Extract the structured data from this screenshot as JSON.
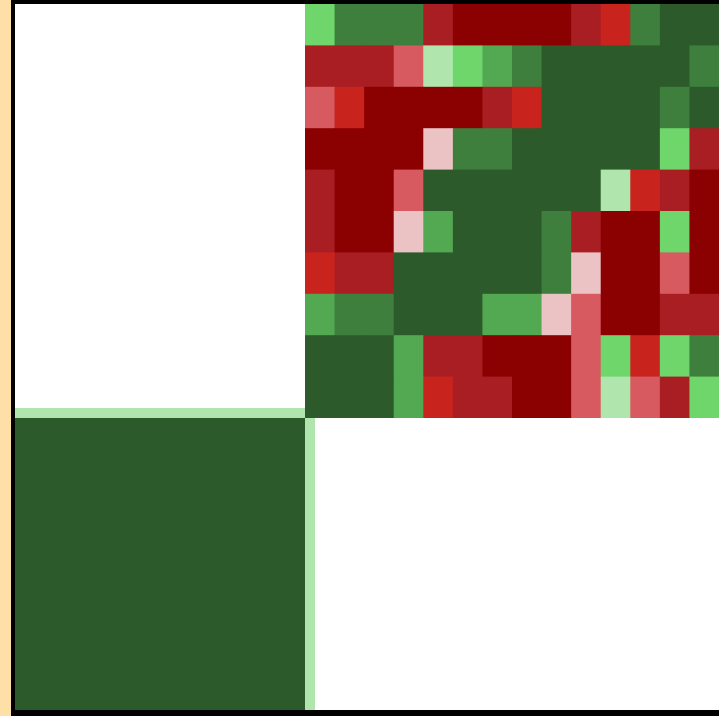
{
  "colors": {
    "background": "#ffdfa8",
    "frame": "#000000",
    "empty": "#ffffff",
    "scale": [
      "#8b0000",
      "#a91e22",
      "#c9231e",
      "#d65a5f",
      "#ebc3c5",
      "#b0e6ae",
      "#6ed66a",
      "#53a852",
      "#3f7f3d",
      "#2c5a2a"
    ]
  },
  "chart_data": {
    "type": "heatmap",
    "title": "",
    "xlabel": "",
    "ylabel": "",
    "grid": false,
    "legend": "none",
    "grid_size": [
      2,
      2
    ],
    "quadrants": [
      {
        "row": 0,
        "col": 0,
        "state": "empty",
        "value": null
      },
      {
        "row": 0,
        "col": 1,
        "state": "subdivided",
        "value": null
      },
      {
        "row": 1,
        "col": 0,
        "state": "filled",
        "value": 9
      },
      {
        "row": 1,
        "col": 1,
        "state": "empty",
        "value": null
      }
    ],
    "separators": [
      {
        "orientation": "horizontal",
        "value": 5
      },
      {
        "orientation": "vertical",
        "value": 5
      }
    ],
    "detail_grid": {
      "rows": 10,
      "cols": 14,
      "values": [
        [
          6,
          8,
          8,
          8,
          1,
          0,
          0,
          0,
          0,
          1,
          2,
          8,
          9,
          9
        ],
        [
          1,
          1,
          1,
          3,
          5,
          6,
          7,
          8,
          9,
          9,
          9,
          9,
          9,
          8
        ],
        [
          3,
          2,
          0,
          0,
          0,
          0,
          1,
          2,
          9,
          9,
          9,
          9,
          8,
          9
        ],
        [
          0,
          0,
          0,
          0,
          4,
          8,
          8,
          9,
          9,
          9,
          9,
          9,
          6,
          1
        ],
        [
          1,
          0,
          0,
          3,
          9,
          9,
          9,
          9,
          9,
          9,
          5,
          2,
          1,
          0
        ],
        [
          1,
          0,
          0,
          4,
          7,
          9,
          9,
          9,
          8,
          1,
          0,
          0,
          6,
          0
        ],
        [
          2,
          1,
          1,
          9,
          9,
          9,
          9,
          9,
          8,
          4,
          0,
          0,
          3,
          0
        ],
        [
          7,
          8,
          8,
          9,
          9,
          9,
          7,
          7,
          4,
          3,
          0,
          0,
          1,
          1
        ],
        [
          9,
          9,
          9,
          7,
          1,
          1,
          0,
          0,
          0,
          3,
          6,
          2,
          6,
          8
        ],
        [
          9,
          9,
          9,
          7,
          2,
          1,
          1,
          0,
          0,
          3,
          5,
          3,
          1,
          6
        ]
      ]
    }
  }
}
